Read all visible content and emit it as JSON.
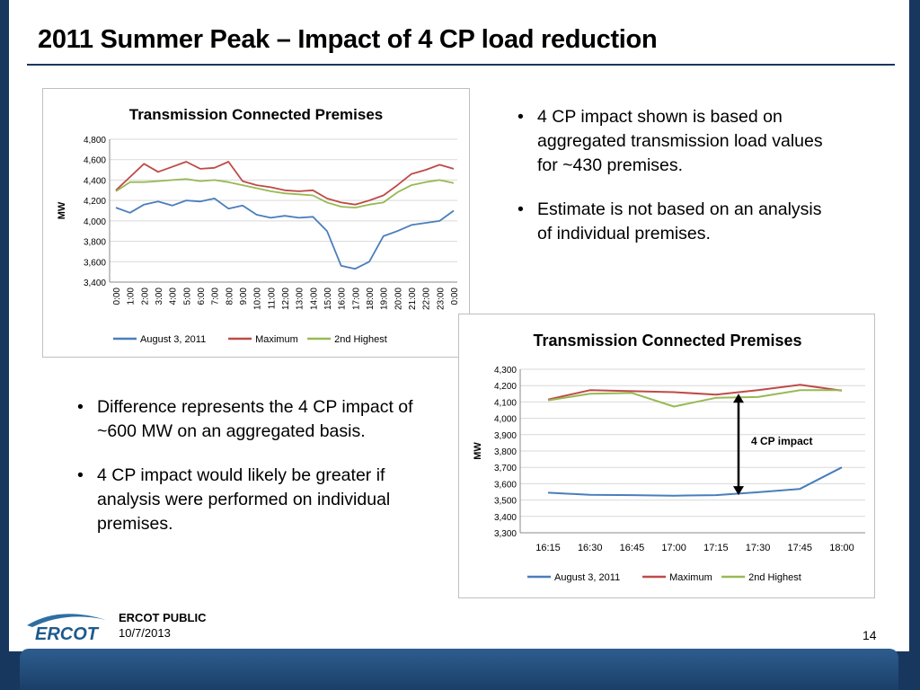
{
  "slide": {
    "title": "2011 Summer Peak – Impact of 4 CP load reduction",
    "bullets_right": [
      "4 CP impact shown is based on aggregated transmission load values for ~430 premises.",
      "Estimate is not based on an analysis of individual premises."
    ],
    "bullets_left": [
      "Difference represents the 4 CP impact of ~600 MW on an aggregated basis.",
      "4 CP impact would likely be greater if analysis were performed on individual premises."
    ],
    "annotation": "4 CP impact",
    "footer": {
      "label": "ERCOT PUBLIC",
      "date": "10/7/2013",
      "page": "14",
      "logo_text": "ERCOT"
    }
  },
  "colors": {
    "background": "#17375e",
    "august": "#4a7ebb",
    "maximum": "#be4b48",
    "second_highest": "#98b954",
    "grid": "#d9d9d9"
  },
  "chart_data": [
    {
      "type": "line",
      "title": "Transmission Connected Premises",
      "ylabel": "MW",
      "ylim": [
        3400,
        4800
      ],
      "yticks": [
        3400,
        3600,
        3800,
        4000,
        4200,
        4400,
        4600,
        4800
      ],
      "x": [
        "0:00",
        "1:00",
        "2:00",
        "3:00",
        "4:00",
        "5:00",
        "6:00",
        "7:00",
        "8:00",
        "9:00",
        "10:00",
        "11:00",
        "12:00",
        "13:00",
        "14:00",
        "15:00",
        "16:00",
        "17:00",
        "18:00",
        "19:00",
        "20:00",
        "21:00",
        "22:00",
        "23:00",
        "0:00"
      ],
      "legend": "bottom",
      "series": [
        {
          "name": "August 3, 2011",
          "color": "#4a7ebb",
          "values": [
            4130,
            4080,
            4160,
            4190,
            4150,
            4200,
            4190,
            4220,
            4120,
            4150,
            4060,
            4030,
            4050,
            4030,
            4040,
            3900,
            3560,
            3530,
            3600,
            3850,
            3900,
            3960,
            3980,
            4000,
            4100
          ]
        },
        {
          "name": "Maximum",
          "color": "#be4b48",
          "values": [
            4300,
            4430,
            4560,
            4480,
            4530,
            4580,
            4510,
            4520,
            4580,
            4390,
            4350,
            4330,
            4300,
            4290,
            4300,
            4220,
            4180,
            4160,
            4200,
            4250,
            4350,
            4460,
            4500,
            4550,
            4510
          ]
        },
        {
          "name": "2nd Highest",
          "color": "#98b954",
          "values": [
            4290,
            4380,
            4380,
            4390,
            4400,
            4410,
            4390,
            4400,
            4380,
            4350,
            4320,
            4290,
            4270,
            4260,
            4250,
            4180,
            4140,
            4130,
            4160,
            4180,
            4280,
            4350,
            4380,
            4400,
            4370
          ]
        }
      ]
    },
    {
      "type": "line",
      "title": "Transmission Connected Premises",
      "ylabel": "MW",
      "ylim": [
        3300,
        4300
      ],
      "yticks": [
        3300,
        3400,
        3500,
        3600,
        3700,
        3800,
        3900,
        4000,
        4100,
        4200,
        4300
      ],
      "x": [
        "16:15",
        "16:30",
        "16:45",
        "17:00",
        "17:15",
        "17:30",
        "17:45",
        "18:00"
      ],
      "legend": "bottom",
      "series": [
        {
          "name": "August 3, 2011",
          "color": "#4a7ebb",
          "values": [
            3545,
            3532,
            3530,
            3527,
            3530,
            3548,
            3568,
            3700
          ]
        },
        {
          "name": "Maximum",
          "color": "#be4b48",
          "values": [
            4115,
            4172,
            4166,
            4160,
            4145,
            4172,
            4205,
            4170
          ]
        },
        {
          "name": "2nd Highest",
          "color": "#98b954",
          "values": [
            4110,
            4150,
            4155,
            4072,
            4125,
            4130,
            4172,
            4172
          ]
        }
      ]
    }
  ]
}
